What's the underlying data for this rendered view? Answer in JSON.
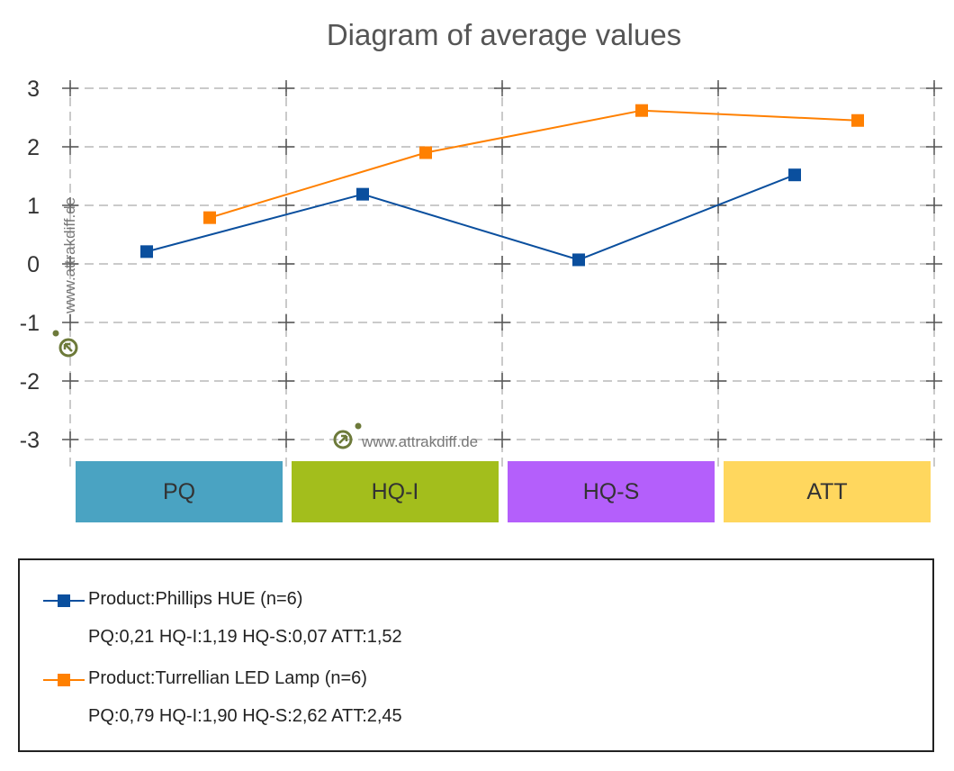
{
  "chart_data": {
    "type": "line",
    "title": "Diagram of average values",
    "categories": [
      "PQ",
      "HQ-I",
      "HQ-S",
      "ATT"
    ],
    "category_colors": [
      "#4aa3c2",
      "#a3be1c",
      "#b45ffb",
      "#ffd75e"
    ],
    "ylim": [
      -3,
      3
    ],
    "yticks": [
      "3",
      "2",
      "1",
      "0",
      "-1",
      "-2",
      "-3"
    ],
    "grid": true,
    "legend_position": "bottom",
    "series": [
      {
        "name": "Product:Phillips HUE (n=6)",
        "values": [
          0.21,
          1.19,
          0.07,
          1.52
        ],
        "summary": "PQ:0,21 HQ-I:1,19 HQ-S:0,07 ATT:1,52",
        "color": "#0a4f9e"
      },
      {
        "name": "Product:Turrellian LED Lamp (n=6)",
        "values": [
          0.79,
          1.9,
          2.62,
          2.45
        ],
        "summary": "PQ:0,79 HQ-I:1,90 HQ-S:2,62 ATT:2,45",
        "color": "#ff8000"
      }
    ],
    "watermark_text": "www.attrakdiff.de",
    "watermark_color": "#6d7a3a"
  }
}
